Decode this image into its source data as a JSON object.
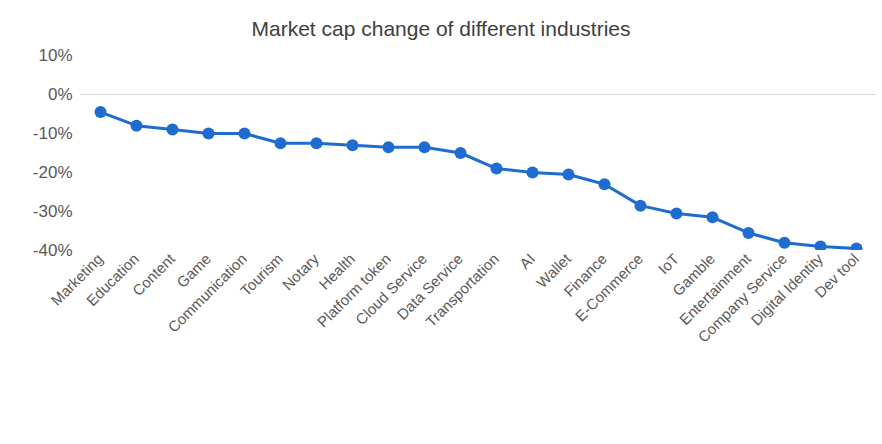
{
  "chart_data": {
    "type": "line",
    "title": "Market cap change of different industries",
    "categories": [
      "Marketing",
      "Education",
      "Content",
      "Game",
      "Communication",
      "Tourism",
      "Notary",
      "Health",
      "Platform token",
      "Cloud Service",
      "Data Service",
      "Transportation",
      "AI",
      "Wallet",
      "Finance",
      "E-Commerce",
      "IoT",
      "Gamble",
      "Entertainment",
      "Company Service",
      "Digital Identity",
      "Dev tool"
    ],
    "values": [
      -4.5,
      -8,
      -9,
      -10,
      -10,
      -12.5,
      -12.5,
      -13,
      -13.5,
      -13.5,
      -15,
      -19,
      -20,
      -20.5,
      -23,
      -28.5,
      -30.5,
      -31.5,
      -35.5,
      -38,
      -39,
      -39.5
    ],
    "color": "#1f6cd1",
    "marker": "circle",
    "ylim": [
      -40,
      10
    ],
    "yticks": [
      {
        "value": -40,
        "label": "-40%"
      },
      {
        "value": -30,
        "label": "-30%"
      },
      {
        "value": -20,
        "label": "-20%"
      },
      {
        "value": -10,
        "label": "-10%"
      },
      {
        "value": 0,
        "label": "0%"
      },
      {
        "value": 10,
        "label": "10%"
      }
    ],
    "grid": false
  }
}
